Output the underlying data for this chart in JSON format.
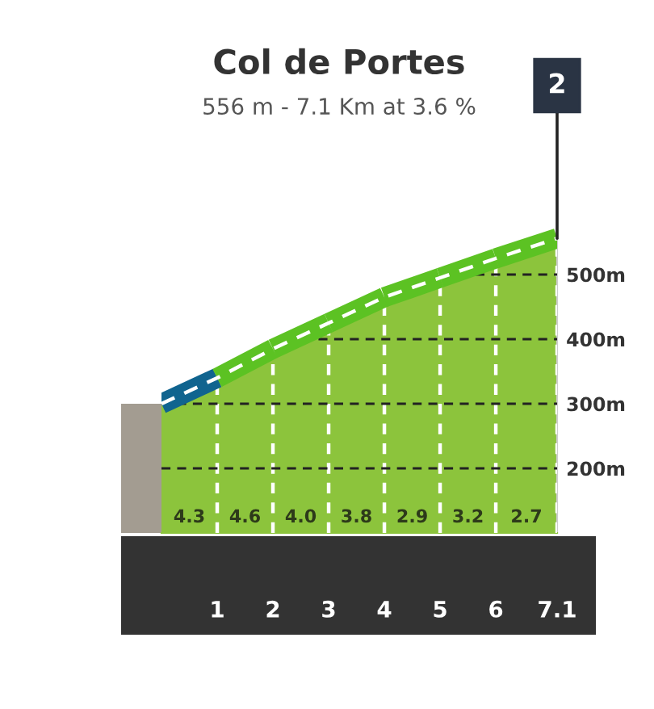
{
  "chart_data": {
    "type": "area",
    "title": "Col de Portes",
    "subtitle": "556 m - 7.1 Km at 3.6 %",
    "x": [
      0,
      1,
      2,
      3,
      4,
      5,
      6,
      7.1
    ],
    "series": [
      {
        "values": [
          300,
          340,
          385,
          425,
          465,
          495,
          525,
          556
        ],
        "color": "#8cc43c",
        "colors": [
          "#a39c91",
          "#10648f",
          "#5cc223",
          "#5cc223",
          "#5cc223",
          "#5cc223",
          "#5cc223",
          "#5cc223"
        ]
      }
    ],
    "xlim": [
      0,
      7.1
    ],
    "xticks": [
      1,
      2,
      3,
      4,
      5,
      6,
      7.1
    ],
    "ylim": [
      100,
      580
    ],
    "yticks": [
      {
        "value": 200,
        "label": "200m"
      },
      {
        "value": 300,
        "label": "300m"
      },
      {
        "value": 400,
        "label": "400m"
      },
      {
        "value": 500,
        "label": "500m"
      }
    ],
    "grid": true,
    "annotations": [
      {
        "text": "2",
        "x": 7.1,
        "y": 556
      },
      "4.3",
      "4.6",
      "4.0",
      "3.8",
      "2.9",
      "3.2",
      "2.7"
    ]
  }
}
